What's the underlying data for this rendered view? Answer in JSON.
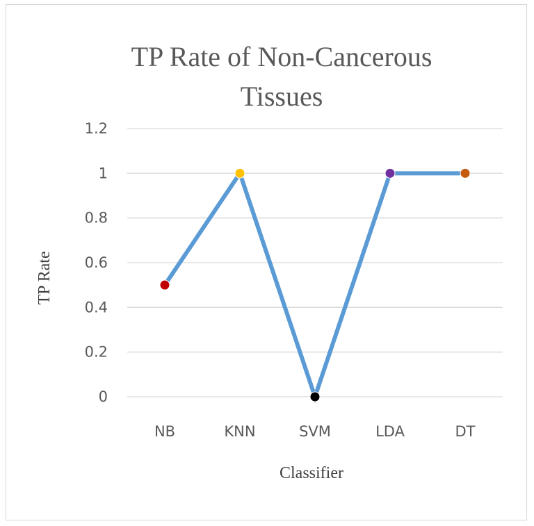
{
  "chart_data": {
    "type": "line",
    "title_lines": [
      "TP Rate of Non-Cancerous",
      "Tissues"
    ],
    "xlabel": "Classifier",
    "ylabel": "TP Rate",
    "categories": [
      "NB",
      "KNN",
      "SVM",
      "LDA",
      "DT"
    ],
    "series": [
      {
        "values": [
          0.5,
          1,
          0,
          1,
          1
        ],
        "color": "#5b9bd5",
        "marker_colors": [
          "#c00000",
          "#ffc000",
          "#000000",
          "#7030a0",
          "#c55a11"
        ]
      }
    ],
    "ylim": [
      0,
      1.2
    ],
    "yticks": [
      0,
      0.2,
      0.4,
      0.6,
      0.8,
      1,
      1.2
    ],
    "ytick_labels": [
      "0",
      "0.2",
      "0.4",
      "0.6",
      "0.8",
      "1",
      "1.2"
    ],
    "grid": true,
    "legend": "none",
    "gridline_color": "#d9d9d9",
    "border_color": "#d6d6d6"
  }
}
